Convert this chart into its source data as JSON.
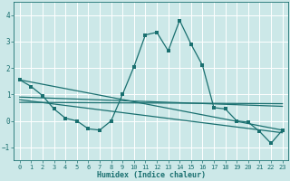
{
  "xlabel": "Humidex (Indice chaleur)",
  "xlim": [
    -0.5,
    23.5
  ],
  "ylim": [
    -1.5,
    4.5
  ],
  "yticks": [
    -1,
    0,
    1,
    2,
    3,
    4
  ],
  "xticks": [
    0,
    1,
    2,
    3,
    4,
    5,
    6,
    7,
    8,
    9,
    10,
    11,
    12,
    13,
    14,
    15,
    16,
    17,
    18,
    19,
    20,
    21,
    22,
    23
  ],
  "background_color": "#cce8e8",
  "line_color": "#1a7070",
  "grid_color": "#b0d8d8",
  "line1_x": [
    0,
    1,
    2,
    3,
    4,
    5,
    6,
    7,
    8,
    9,
    10,
    11,
    12,
    13,
    14,
    15,
    16,
    17,
    18,
    19,
    20,
    21,
    22,
    23
  ],
  "line1_y": [
    1.55,
    1.3,
    0.95,
    0.45,
    0.1,
    0.0,
    -0.3,
    -0.35,
    0.0,
    1.0,
    2.05,
    3.25,
    3.35,
    2.65,
    3.8,
    2.9,
    2.1,
    0.5,
    0.45,
    0.0,
    -0.05,
    -0.4,
    -0.85,
    -0.35
  ],
  "line2_x": [
    0,
    23
  ],
  "line2_y": [
    1.55,
    -0.35
  ],
  "line3_x": [
    0,
    23
  ],
  "line3_y": [
    0.9,
    0.55
  ],
  "line4_x": [
    0,
    23
  ],
  "line4_y": [
    0.8,
    -0.45
  ],
  "line5_x": [
    0,
    23
  ],
  "line5_y": [
    0.7,
    0.65
  ]
}
